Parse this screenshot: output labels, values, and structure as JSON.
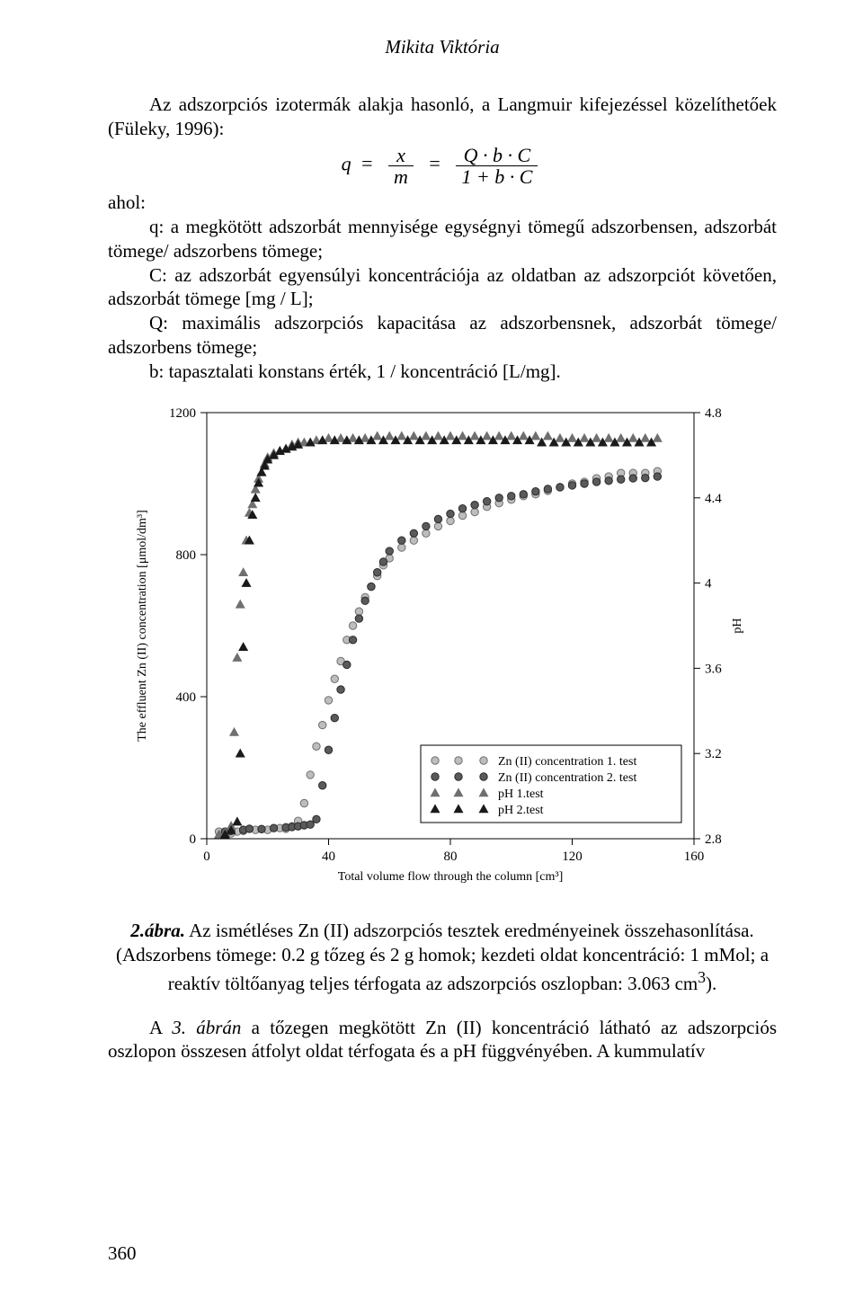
{
  "running_head": "Mikita Viktória",
  "para1": "Az adszorpciós izotermák alakja hasonló, a Langmuir kifejezéssel közelíthetőek (Füleky, 1996):",
  "eq": {
    "lhs_var": "q",
    "eq1": "=",
    "frac1_num": "x",
    "frac1_den": "m",
    "eq2": "=",
    "frac2_num": "Q · b · C",
    "frac2_den": "1 + b · C"
  },
  "ahol_label": "ahol:",
  "def_q": "q: a megkötött adszorbát mennyisége egységnyi tömegű adszorbensen, adszorbát tömege/ adszorbens tömege;",
  "def_C": "C: az adszorbát egyensúlyi koncentrációja az oldatban az adszorpciót követően, adszorbát tömege [mg / L];",
  "def_Q": "Q: maximális adszorpciós kapacitása az adszorbensnek, adszorbát tömege/ adszorbens tömege;",
  "def_b": "b: tapasztalati konstans érték, 1 / koncentráció [L/mg].",
  "caption": "2.ábra. Az ismétléses Zn (II) adszorpciós tesztek eredményeinek összehasonlítása. (Adszorbens tömege: 0.2 g tőzeg és 2 g homok; kezdeti oldat koncentráció: 1 mMol; a reaktív töltőanyag teljes térfogata az adszorpciós oszlopban: 3.063 cm³).",
  "after": "A 3. ábrán a tőzegen megkötött Zn (II) koncentráció látható az adszorpciós oszlopon összesen átfolyt oldat térfogata és a pH függvényében. A kummulatív",
  "page_number": "360",
  "chart": {
    "type": "scatter-dual-axis",
    "x_label": "Total volume flow through the column [cm³]",
    "y_left_label": "The effluent Zn (II) concentration [μmol/dm³]",
    "y_right_label": "pH",
    "xlim": [
      0,
      160
    ],
    "xticks": [
      0,
      40,
      80,
      120,
      160
    ],
    "y_left_lim": [
      0,
      1200
    ],
    "y_left_ticks": [
      0,
      400,
      800,
      1200
    ],
    "y_right_lim": [
      2.8,
      4.8
    ],
    "y_right_ticks": [
      2.8,
      3.2,
      3.6,
      4.0,
      4.4,
      4.8
    ],
    "legend": [
      {
        "label": "Zn (II) concentration 1. test",
        "shape": "circle",
        "fill": "#bdbdbd",
        "stroke": "#6f6f6f"
      },
      {
        "label": "Zn (II) concentration 2. test",
        "shape": "circle",
        "fill": "#5a5a5a",
        "stroke": "#2b2b2b"
      },
      {
        "label": "pH 1.test",
        "shape": "triangle",
        "fill": "#6f6f6f",
        "stroke": "#6f6f6f"
      },
      {
        "label": "pH 2.test",
        "shape": "triangle",
        "fill": "#1a1a1a",
        "stroke": "#1a1a1a"
      }
    ],
    "series": {
      "zn1": {
        "shape": "circle",
        "fill": "#bdbdbd",
        "stroke": "#6f6f6f",
        "size": 4.2,
        "pts": [
          [
            4,
            20
          ],
          [
            8,
            15
          ],
          [
            10,
            20
          ],
          [
            12,
            22
          ],
          [
            16,
            25
          ],
          [
            18,
            27
          ],
          [
            20,
            25
          ],
          [
            24,
            30
          ],
          [
            26,
            28
          ],
          [
            28,
            35
          ],
          [
            30,
            50
          ],
          [
            32,
            100
          ],
          [
            34,
            180
          ],
          [
            36,
            260
          ],
          [
            38,
            320
          ],
          [
            40,
            390
          ],
          [
            42,
            450
          ],
          [
            44,
            500
          ],
          [
            46,
            560
          ],
          [
            48,
            600
          ],
          [
            50,
            640
          ],
          [
            52,
            680
          ],
          [
            54,
            710
          ],
          [
            56,
            740
          ],
          [
            58,
            770
          ],
          [
            60,
            790
          ],
          [
            64,
            820
          ],
          [
            68,
            840
          ],
          [
            72,
            860
          ],
          [
            76,
            880
          ],
          [
            80,
            895
          ],
          [
            84,
            910
          ],
          [
            88,
            920
          ],
          [
            92,
            935
          ],
          [
            96,
            945
          ],
          [
            100,
            955
          ],
          [
            104,
            965
          ],
          [
            108,
            970
          ],
          [
            112,
            980
          ],
          [
            116,
            990
          ],
          [
            120,
            1000
          ],
          [
            124,
            1005
          ],
          [
            128,
            1015
          ],
          [
            132,
            1020
          ],
          [
            136,
            1030
          ],
          [
            140,
            1030
          ],
          [
            144,
            1030
          ],
          [
            148,
            1035
          ]
        ]
      },
      "zn2": {
        "shape": "circle",
        "fill": "#5a5a5a",
        "stroke": "#2b2b2b",
        "size": 4.2,
        "pts": [
          [
            6,
            20
          ],
          [
            8,
            22
          ],
          [
            12,
            25
          ],
          [
            14,
            28
          ],
          [
            18,
            27
          ],
          [
            22,
            30
          ],
          [
            26,
            32
          ],
          [
            28,
            33
          ],
          [
            30,
            35
          ],
          [
            32,
            38
          ],
          [
            34,
            40
          ],
          [
            36,
            55
          ],
          [
            38,
            150
          ],
          [
            40,
            250
          ],
          [
            42,
            340
          ],
          [
            44,
            420
          ],
          [
            46,
            490
          ],
          [
            48,
            560
          ],
          [
            50,
            620
          ],
          [
            52,
            670
          ],
          [
            54,
            710
          ],
          [
            56,
            750
          ],
          [
            58,
            780
          ],
          [
            60,
            810
          ],
          [
            64,
            840
          ],
          [
            68,
            860
          ],
          [
            72,
            880
          ],
          [
            76,
            900
          ],
          [
            80,
            915
          ],
          [
            84,
            930
          ],
          [
            88,
            940
          ],
          [
            92,
            950
          ],
          [
            96,
            960
          ],
          [
            100,
            965
          ],
          [
            104,
            970
          ],
          [
            108,
            978
          ],
          [
            112,
            985
          ],
          [
            116,
            990
          ],
          [
            120,
            995
          ],
          [
            124,
            1000
          ],
          [
            128,
            1005
          ],
          [
            132,
            1008
          ],
          [
            136,
            1012
          ],
          [
            140,
            1015
          ],
          [
            144,
            1016
          ],
          [
            148,
            1020
          ]
        ]
      },
      "ph1": {
        "shape": "triangle",
        "fill": "#6f6f6f",
        "stroke": "#6f6f6f",
        "size": 5,
        "pts": [
          [
            4,
            2.82
          ],
          [
            6,
            2.83
          ],
          [
            8,
            2.86
          ],
          [
            9,
            3.3
          ],
          [
            10,
            3.65
          ],
          [
            11,
            3.9
          ],
          [
            12,
            4.05
          ],
          [
            13,
            4.2
          ],
          [
            14,
            4.33
          ],
          [
            15,
            4.37
          ],
          [
            16,
            4.44
          ],
          [
            17,
            4.49
          ],
          [
            18,
            4.52
          ],
          [
            19,
            4.56
          ],
          [
            20,
            4.59
          ],
          [
            22,
            4.61
          ],
          [
            24,
            4.62
          ],
          [
            26,
            4.63
          ],
          [
            28,
            4.65
          ],
          [
            30,
            4.66
          ],
          [
            32,
            4.66
          ],
          [
            36,
            4.67
          ],
          [
            40,
            4.68
          ],
          [
            44,
            4.68
          ],
          [
            48,
            4.68
          ],
          [
            52,
            4.68
          ],
          [
            56,
            4.69
          ],
          [
            60,
            4.69
          ],
          [
            64,
            4.69
          ],
          [
            68,
            4.69
          ],
          [
            72,
            4.69
          ],
          [
            76,
            4.69
          ],
          [
            80,
            4.69
          ],
          [
            84,
            4.69
          ],
          [
            88,
            4.69
          ],
          [
            92,
            4.69
          ],
          [
            96,
            4.69
          ],
          [
            100,
            4.69
          ],
          [
            104,
            4.69
          ],
          [
            108,
            4.69
          ],
          [
            112,
            4.69
          ],
          [
            116,
            4.68
          ],
          [
            120,
            4.68
          ],
          [
            124,
            4.68
          ],
          [
            128,
            4.68
          ],
          [
            132,
            4.68
          ],
          [
            136,
            4.68
          ],
          [
            140,
            4.68
          ],
          [
            144,
            4.68
          ],
          [
            148,
            4.68
          ]
        ]
      },
      "ph2": {
        "shape": "triangle",
        "fill": "#1a1a1a",
        "stroke": "#1a1a1a",
        "size": 5,
        "pts": [
          [
            6,
            2.82
          ],
          [
            8,
            2.84
          ],
          [
            10,
            2.88
          ],
          [
            11,
            3.2
          ],
          [
            12,
            3.7
          ],
          [
            13,
            4.0
          ],
          [
            14,
            4.2
          ],
          [
            15,
            4.32
          ],
          [
            16,
            4.4
          ],
          [
            17,
            4.47
          ],
          [
            18,
            4.52
          ],
          [
            19,
            4.55
          ],
          [
            20,
            4.58
          ],
          [
            22,
            4.6
          ],
          [
            24,
            4.62
          ],
          [
            26,
            4.63
          ],
          [
            28,
            4.64
          ],
          [
            30,
            4.65
          ],
          [
            34,
            4.66
          ],
          [
            38,
            4.67
          ],
          [
            42,
            4.67
          ],
          [
            46,
            4.67
          ],
          [
            50,
            4.67
          ],
          [
            54,
            4.67
          ],
          [
            58,
            4.67
          ],
          [
            62,
            4.67
          ],
          [
            66,
            4.67
          ],
          [
            70,
            4.67
          ],
          [
            74,
            4.67
          ],
          [
            78,
            4.67
          ],
          [
            82,
            4.67
          ],
          [
            86,
            4.67
          ],
          [
            90,
            4.67
          ],
          [
            94,
            4.67
          ],
          [
            98,
            4.67
          ],
          [
            102,
            4.67
          ],
          [
            106,
            4.67
          ],
          [
            110,
            4.66
          ],
          [
            114,
            4.66
          ],
          [
            118,
            4.66
          ],
          [
            122,
            4.66
          ],
          [
            126,
            4.66
          ],
          [
            130,
            4.66
          ],
          [
            134,
            4.66
          ],
          [
            138,
            4.66
          ],
          [
            142,
            4.66
          ],
          [
            146,
            4.66
          ]
        ]
      }
    },
    "font": {
      "label_size": 14,
      "tick_size": 15
    }
  }
}
